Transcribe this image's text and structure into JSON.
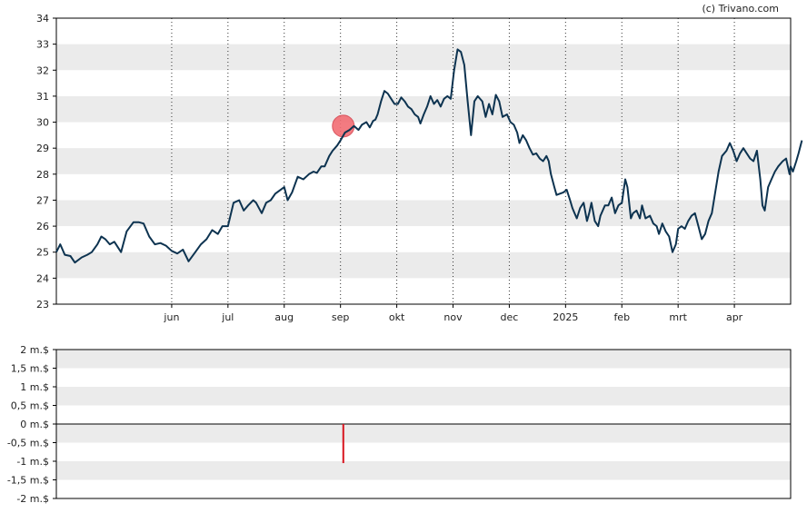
{
  "credit": "(c) Trivano.com",
  "colors": {
    "price_line": "#0d3350",
    "band": "#ebebeb",
    "marker_fill": "#f26d74",
    "marker_stroke": "#d64550",
    "bar": "#d8141e",
    "axis": "#000000"
  },
  "chart_data": [
    {
      "type": "line",
      "title": "",
      "xlabel": "",
      "ylabel": "",
      "ylim": [
        23,
        34
      ],
      "yticks": [
        23,
        24,
        25,
        26,
        27,
        28,
        29,
        30,
        31,
        32,
        33,
        34
      ],
      "y_tick_labels": [
        "23",
        "24",
        "25",
        "26",
        "27",
        "28",
        "29",
        "30",
        "31",
        "32",
        "33",
        "34"
      ],
      "grid": "alternating horizontal bands, dotted vertical month lines",
      "x_ticks": [
        {
          "label": "jun",
          "month": 1
        },
        {
          "label": "jul",
          "month": 2
        },
        {
          "label": "aug",
          "month": 3
        },
        {
          "label": "sep",
          "month": 4
        },
        {
          "label": "okt",
          "month": 5
        },
        {
          "label": "nov",
          "month": 6
        },
        {
          "label": "dec",
          "month": 7
        },
        {
          "label": "2025",
          "month": 8
        },
        {
          "label": "feb",
          "month": 9
        },
        {
          "label": "mrt",
          "month": 10
        },
        {
          "label": "apr",
          "month": 11
        }
      ],
      "x_range_months": [
        -1.05,
        12.0
      ],
      "series": [
        {
          "values": [
            [
              -1.05,
              25.0
            ],
            [
              -0.98,
              25.3
            ],
            [
              -0.9,
              24.9
            ],
            [
              -0.8,
              24.85
            ],
            [
              -0.72,
              24.6
            ],
            [
              -0.6,
              24.8
            ],
            [
              -0.5,
              24.9
            ],
            [
              -0.42,
              25.0
            ],
            [
              -0.32,
              25.3
            ],
            [
              -0.25,
              25.6
            ],
            [
              -0.18,
              25.5
            ],
            [
              -0.1,
              25.3
            ],
            [
              -0.02,
              25.4
            ],
            [
              0.1,
              25.0
            ],
            [
              0.2,
              25.8
            ],
            [
              0.32,
              26.15
            ],
            [
              0.42,
              26.15
            ],
            [
              0.5,
              26.1
            ],
            [
              0.6,
              25.6
            ],
            [
              0.7,
              25.3
            ],
            [
              0.8,
              25.35
            ],
            [
              0.9,
              25.25
            ],
            [
              1.0,
              25.05
            ],
            [
              1.1,
              24.95
            ],
            [
              1.2,
              25.1
            ],
            [
              1.3,
              24.65
            ],
            [
              1.42,
              25.0
            ],
            [
              1.52,
              25.3
            ],
            [
              1.62,
              25.5
            ],
            [
              1.72,
              25.85
            ],
            [
              1.82,
              25.7
            ],
            [
              1.9,
              26.0
            ],
            [
              2.0,
              26.0
            ],
            [
              2.1,
              26.9
            ],
            [
              2.2,
              27.0
            ],
            [
              2.28,
              26.6
            ],
            [
              2.36,
              26.8
            ],
            [
              2.45,
              27.0
            ],
            [
              2.5,
              26.9
            ],
            [
              2.6,
              26.5
            ],
            [
              2.68,
              26.9
            ],
            [
              2.76,
              27.0
            ],
            [
              2.84,
              27.25
            ],
            [
              3.0,
              27.5
            ],
            [
              3.06,
              27.0
            ],
            [
              3.14,
              27.3
            ],
            [
              3.24,
              27.9
            ],
            [
              3.34,
              27.8
            ],
            [
              3.44,
              28.0
            ],
            [
              3.52,
              28.1
            ],
            [
              3.58,
              28.05
            ],
            [
              3.66,
              28.3
            ],
            [
              3.72,
              28.3
            ],
            [
              3.8,
              28.7
            ],
            [
              3.86,
              28.9
            ],
            [
              3.94,
              29.1
            ],
            [
              4.0,
              29.3
            ],
            [
              4.08,
              29.6
            ],
            [
              4.16,
              29.7
            ],
            [
              4.24,
              29.85
            ],
            [
              4.32,
              29.7
            ],
            [
              4.38,
              29.9
            ],
            [
              4.46,
              30.0
            ],
            [
              4.52,
              29.8
            ],
            [
              4.58,
              30.05
            ],
            [
              4.62,
              30.1
            ],
            [
              4.66,
              30.3
            ],
            [
              4.72,
              30.8
            ],
            [
              4.78,
              31.2
            ],
            [
              4.84,
              31.1
            ],
            [
              4.9,
              30.9
            ],
            [
              4.96,
              30.7
            ],
            [
              5.02,
              30.7
            ],
            [
              5.08,
              30.95
            ],
            [
              5.14,
              30.8
            ],
            [
              5.2,
              30.6
            ],
            [
              5.26,
              30.5
            ],
            [
              5.32,
              30.3
            ],
            [
              5.38,
              30.2
            ],
            [
              5.42,
              29.95
            ],
            [
              5.48,
              30.3
            ],
            [
              5.54,
              30.6
            ],
            [
              5.6,
              31.0
            ],
            [
              5.66,
              30.7
            ],
            [
              5.72,
              30.85
            ],
            [
              5.78,
              30.6
            ],
            [
              5.84,
              30.9
            ],
            [
              5.9,
              31.0
            ],
            [
              5.96,
              30.9
            ],
            [
              6.02,
              32.0
            ],
            [
              6.08,
              32.8
            ],
            [
              6.14,
              32.7
            ],
            [
              6.2,
              32.2
            ],
            [
              6.26,
              30.8
            ],
            [
              6.32,
              29.5
            ],
            [
              6.38,
              30.8
            ],
            [
              6.44,
              31.0
            ],
            [
              6.52,
              30.8
            ],
            [
              6.58,
              30.2
            ],
            [
              6.64,
              30.7
            ],
            [
              6.7,
              30.3
            ],
            [
              6.76,
              31.05
            ],
            [
              6.82,
              30.8
            ],
            [
              6.88,
              30.2
            ],
            [
              6.96,
              30.3
            ],
            [
              7.02,
              30.0
            ],
            [
              7.08,
              29.9
            ],
            [
              7.14,
              29.6
            ],
            [
              7.18,
              29.2
            ],
            [
              7.24,
              29.5
            ],
            [
              7.3,
              29.3
            ],
            [
              7.36,
              29.0
            ],
            [
              7.42,
              28.75
            ],
            [
              7.48,
              28.8
            ],
            [
              7.54,
              28.6
            ],
            [
              7.6,
              28.5
            ],
            [
              7.66,
              28.7
            ],
            [
              7.7,
              28.5
            ],
            [
              7.74,
              28.0
            ],
            [
              7.8,
              27.5
            ],
            [
              7.84,
              27.2
            ],
            [
              7.9,
              27.25
            ],
            [
              7.96,
              27.3
            ],
            [
              8.02,
              27.4
            ],
            [
              8.08,
              27.0
            ],
            [
              8.12,
              26.7
            ],
            [
              8.16,
              26.5
            ],
            [
              8.2,
              26.3
            ],
            [
              8.26,
              26.7
            ],
            [
              8.32,
              26.9
            ],
            [
              8.38,
              26.2
            ],
            [
              8.42,
              26.5
            ],
            [
              8.46,
              26.9
            ],
            [
              8.52,
              26.2
            ],
            [
              8.58,
              26.0
            ],
            [
              8.62,
              26.4
            ],
            [
              8.7,
              26.8
            ],
            [
              8.76,
              26.8
            ],
            [
              8.82,
              27.1
            ],
            [
              8.88,
              26.5
            ],
            [
              8.94,
              26.8
            ],
            [
              9.0,
              26.9
            ],
            [
              9.06,
              27.8
            ],
            [
              9.1,
              27.5
            ],
            [
              9.16,
              26.3
            ],
            [
              9.2,
              26.5
            ],
            [
              9.26,
              26.6
            ],
            [
              9.32,
              26.3
            ],
            [
              9.36,
              26.8
            ],
            [
              9.42,
              26.3
            ],
            [
              9.5,
              26.4
            ],
            [
              9.56,
              26.1
            ],
            [
              9.62,
              26.0
            ],
            [
              9.66,
              25.7
            ],
            [
              9.72,
              26.1
            ],
            [
              9.78,
              25.8
            ],
            [
              9.84,
              25.6
            ],
            [
              9.9,
              25.0
            ],
            [
              9.96,
              25.3
            ],
            [
              10.0,
              25.9
            ],
            [
              10.06,
              26.0
            ],
            [
              10.12,
              25.9
            ],
            [
              10.18,
              26.2
            ],
            [
              10.24,
              26.4
            ],
            [
              10.3,
              26.5
            ],
            [
              10.36,
              26.0
            ],
            [
              10.42,
              25.5
            ],
            [
              10.48,
              25.7
            ],
            [
              10.54,
              26.2
            ],
            [
              10.6,
              26.5
            ],
            [
              10.66,
              27.3
            ],
            [
              10.72,
              28.1
            ],
            [
              10.78,
              28.7
            ],
            [
              10.86,
              28.9
            ],
            [
              10.92,
              29.2
            ],
            [
              10.98,
              28.9
            ],
            [
              11.04,
              28.5
            ],
            [
              11.1,
              28.8
            ],
            [
              11.16,
              29.0
            ],
            [
              11.22,
              28.8
            ],
            [
              11.28,
              28.6
            ],
            [
              11.34,
              28.5
            ],
            [
              11.4,
              28.9
            ],
            [
              11.46,
              27.8
            ],
            [
              11.5,
              26.8
            ],
            [
              11.54,
              26.6
            ],
            [
              11.6,
              27.5
            ],
            [
              11.66,
              27.8
            ],
            [
              11.72,
              28.1
            ],
            [
              11.78,
              28.3
            ],
            [
              11.86,
              28.5
            ],
            [
              11.92,
              28.6
            ],
            [
              11.98,
              28.0
            ],
            [
              12.0,
              28.3
            ],
            [
              12.04,
              28.1
            ],
            [
              12.1,
              28.5
            ],
            [
              12.14,
              28.8
            ],
            [
              12.2,
              29.3
            ]
          ]
        }
      ],
      "marker": {
        "x": 4.05,
        "y": 29.85
      }
    },
    {
      "type": "bar",
      "title": "",
      "xlabel": "",
      "ylabel": "",
      "ylim": [
        -2,
        2
      ],
      "yticks": [
        2,
        1.5,
        1,
        0.5,
        0,
        -0.5,
        -1,
        -1.5,
        -2
      ],
      "y_tick_labels": [
        "2 m.$",
        "1,5 m.$",
        "1 m.$",
        "0,5 m.$",
        "0 m.$",
        "-0,5 m.$",
        "-1 m.$",
        "-1,5 m.$",
        "-2 m.$"
      ],
      "grid": "alternating horizontal bands",
      "series": [
        {
          "values": [
            {
              "x": 4.05,
              "y": -1.05
            }
          ]
        }
      ]
    }
  ]
}
